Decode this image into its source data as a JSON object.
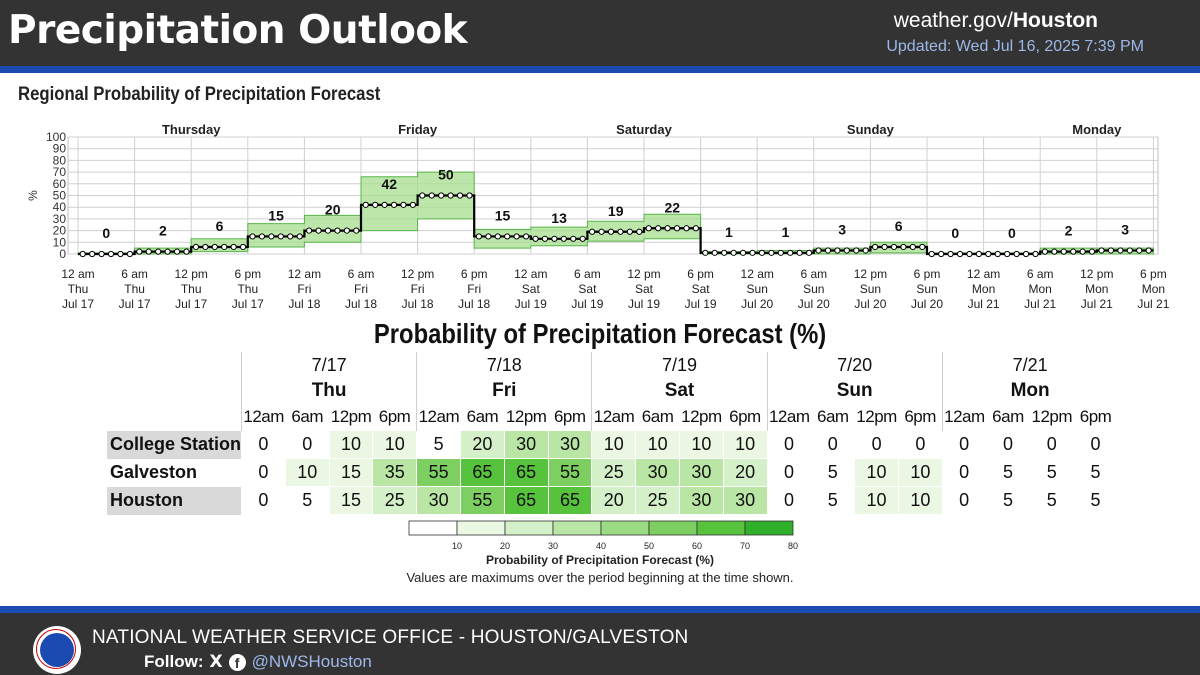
{
  "header": {
    "title": "Precipitation Outlook",
    "site_prefix": "weather.gov/",
    "site_office": "Houston",
    "updated": "Updated: Wed Jul 16, 2025 7:39 PM"
  },
  "colors": {
    "header_bg": "#333333",
    "accent_blue": "#1b4bb0",
    "updated_text": "#9db8e8",
    "line": "#000000",
    "band_fill": "#a6dd8e",
    "band_stroke": "#57b548"
  },
  "chart_data": {
    "type": "line",
    "title": "Regional Probability of Precipitation Forecast",
    "ylabel": "%",
    "ylim": [
      0,
      100
    ],
    "yticks": [
      0,
      10,
      20,
      30,
      40,
      50,
      60,
      70,
      80,
      90,
      100
    ],
    "grid": true,
    "x_start": "2025-07-17 00:00",
    "x_end": "2025-07-21 18:00",
    "day_labels": [
      "Thursday",
      "Friday",
      "Saturday",
      "Sunday",
      "Monday"
    ],
    "xtick_labels": [
      [
        "12 am",
        "Thu",
        "Jul 17"
      ],
      [
        "6 am",
        "Thu",
        "Jul 17"
      ],
      [
        "12 pm",
        "Thu",
        "Jul 17"
      ],
      [
        "6 pm",
        "Thu",
        "Jul 17"
      ],
      [
        "12 am",
        "Fri",
        "Jul 18"
      ],
      [
        "6 am",
        "Fri",
        "Jul 18"
      ],
      [
        "12 pm",
        "Fri",
        "Jul 18"
      ],
      [
        "6 pm",
        "Fri",
        "Jul 18"
      ],
      [
        "12 am",
        "Sat",
        "Jul 19"
      ],
      [
        "6 am",
        "Sat",
        "Jul 19"
      ],
      [
        "12 pm",
        "Sat",
        "Jul 19"
      ],
      [
        "6 pm",
        "Sat",
        "Jul 19"
      ],
      [
        "12 am",
        "Sun",
        "Jul 20"
      ],
      [
        "6 am",
        "Sun",
        "Jul 20"
      ],
      [
        "12 pm",
        "Sun",
        "Jul 20"
      ],
      [
        "6 pm",
        "Sun",
        "Jul 20"
      ],
      [
        "12 am",
        "Mon",
        "Jul 21"
      ],
      [
        "6 am",
        "Mon",
        "Jul 21"
      ],
      [
        "12 pm",
        "Mon",
        "Jul 21"
      ],
      [
        "6 pm",
        "Mon",
        "Jul 21"
      ]
    ],
    "period_values": [
      0,
      2,
      6,
      15,
      20,
      42,
      50,
      15,
      13,
      19,
      22,
      1,
      1,
      3,
      6,
      0,
      0,
      2,
      3
    ],
    "period_labels": [
      "0",
      "2",
      "6",
      "15",
      "20",
      "42",
      "50",
      "15",
      "13",
      "19",
      "22",
      "1",
      "1",
      "3",
      "6",
      "0",
      "0",
      "2",
      "3"
    ],
    "range_low": [
      0,
      0,
      2,
      6,
      10,
      20,
      30,
      5,
      7,
      11,
      13,
      0,
      0,
      0,
      1,
      0,
      0,
      0,
      0
    ],
    "range_high": [
      1,
      5,
      13,
      26,
      33,
      66,
      70,
      21,
      23,
      28,
      34,
      2,
      3,
      5,
      10,
      1,
      1,
      5,
      5
    ]
  },
  "table": {
    "title": "Probability of Precipitation Forecast (%)",
    "dates": [
      "7/17",
      "7/18",
      "7/19",
      "7/20",
      "7/21"
    ],
    "days": [
      "Thu",
      "Fri",
      "Sat",
      "Sun",
      "Mon"
    ],
    "hours": [
      "12am",
      "6am",
      "12pm",
      "6pm",
      "12am",
      "6am",
      "12pm",
      "6pm",
      "12am",
      "6am",
      "12pm",
      "6pm",
      "12am",
      "6am",
      "12pm",
      "6pm",
      "12am",
      "6am",
      "12pm",
      "6pm"
    ],
    "rows": [
      {
        "name": "College Station",
        "values": [
          0,
          0,
          10,
          10,
          5,
          20,
          30,
          30,
          10,
          10,
          10,
          10,
          0,
          0,
          0,
          0,
          0,
          0,
          0,
          0
        ]
      },
      {
        "name": "Galveston",
        "values": [
          0,
          10,
          15,
          35,
          55,
          65,
          65,
          55,
          25,
          30,
          30,
          20,
          0,
          5,
          10,
          10,
          0,
          5,
          5,
          5
        ]
      },
      {
        "name": "Houston",
        "values": [
          0,
          5,
          15,
          25,
          30,
          55,
          65,
          65,
          20,
          25,
          30,
          30,
          0,
          5,
          10,
          10,
          0,
          5,
          5,
          5
        ]
      }
    ]
  },
  "legend": {
    "ticks": [
      "10",
      "20",
      "30",
      "40",
      "50",
      "60",
      "70",
      "80"
    ],
    "title": "Probability of Precipitation Forecast (%)",
    "note": "Values are maximums over the period beginning at the time shown.",
    "colors": [
      "#ffffff",
      "#e9f7e3",
      "#d3f0c8",
      "#b9e6a5",
      "#9bdb84",
      "#7dcf62",
      "#57c23c",
      "#2fb02a"
    ]
  },
  "footer": {
    "office": "NATIONAL WEATHER SERVICE OFFICE - HOUSTON/GALVESTON",
    "follow_label": "Follow:",
    "x_icon": "X",
    "fb_icon": "f",
    "handle": "@NWSHouston",
    "logo_icon": "nws-logo-icon"
  }
}
